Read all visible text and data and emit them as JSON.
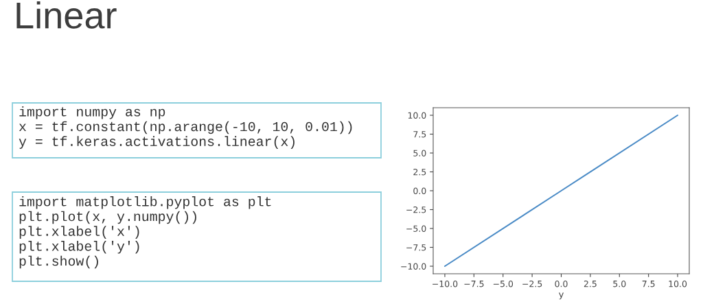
{
  "chart_data": {
    "type": "line",
    "title": "Linear",
    "xlabel": "y",
    "annotations": [
      "import numpy as np\nx = tf.constant(np.arange(-10, 10, 0.01))\ny = tf.keras.activations.linear(x)",
      "import matplotlib.pyplot as plt\nplt.plot(x, y.numpy())\nplt.xlabel('x')\nplt.xlabel('y')\nplt.show()"
    ],
    "x": [
      -10,
      0,
      10
    ],
    "series": [
      {
        "color": "#4a8bc6",
        "values": [
          -10,
          0,
          10
        ]
      }
    ],
    "xlim": [
      -11,
      11
    ],
    "ylim": [
      -11,
      11
    ],
    "xticks": [
      {
        "value": -10,
        "label": "−10.0"
      },
      {
        "value": -7.5,
        "label": "−7.5"
      },
      {
        "value": -5,
        "label": "−5.0"
      },
      {
        "value": -2.5,
        "label": "−2.5"
      },
      {
        "value": 0,
        "label": "0.0"
      },
      {
        "value": 2.5,
        "label": "2.5"
      },
      {
        "value": 5,
        "label": "5.0"
      },
      {
        "value": 7.5,
        "label": "7.5"
      },
      {
        "value": 10,
        "label": "10.0"
      }
    ],
    "yticks": [
      {
        "value": -10,
        "label": "−10.0"
      },
      {
        "value": -7.5,
        "label": "−7.5"
      },
      {
        "value": -5,
        "label": "−5.0"
      },
      {
        "value": -2.5,
        "label": "−2.5"
      },
      {
        "value": 0,
        "label": "0.0"
      },
      {
        "value": 2.5,
        "label": "2.5"
      },
      {
        "value": 5,
        "label": "5.0"
      },
      {
        "value": 7.5,
        "label": "7.5"
      },
      {
        "value": 10,
        "label": "10.0"
      }
    ]
  }
}
